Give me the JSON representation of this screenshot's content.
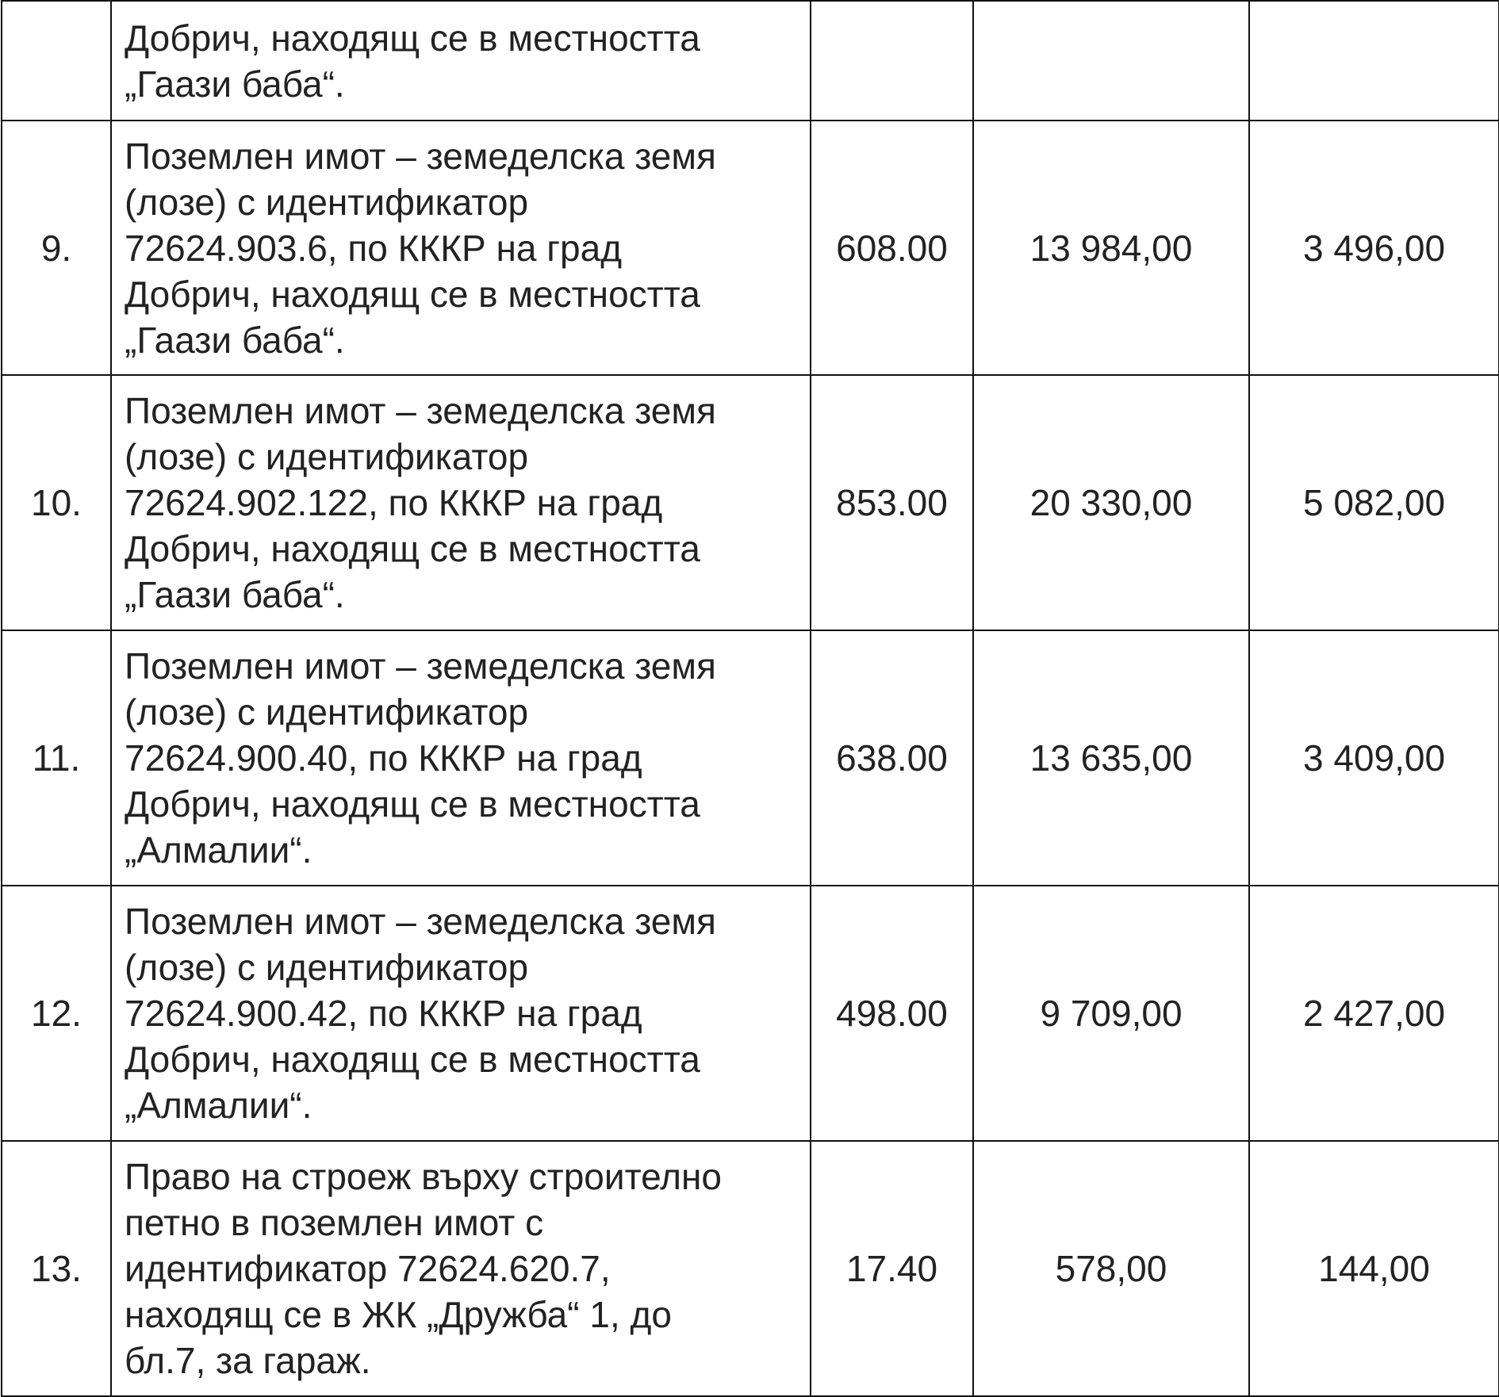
{
  "table": {
    "rows": [
      {
        "description": [
          "Добрич, находящ се в местността",
          "„Гаази баба“."
        ]
      },
      {
        "number": "9.",
        "description": [
          "Поземлен имот – земеделска земя",
          "(лозе) с идентификатор",
          "72624.903.6, по КККР на град",
          "Добрич, находящ се в местността",
          "„Гаази баба“."
        ],
        "area": "608.00",
        "value_a": "13 984,00",
        "value_b": "3 496,00"
      },
      {
        "number": "10.",
        "description": [
          "Поземлен имот – земеделска земя",
          "(лозе) с идентификатор",
          "72624.902.122, по КККР на град",
          "Добрич, находящ се в местността",
          "„Гаази баба“."
        ],
        "area": "853.00",
        "value_a": "20 330,00",
        "value_b": "5 082,00"
      },
      {
        "number": "11.",
        "description": [
          "Поземлен имот – земеделска земя",
          "(лозе) с идентификатор",
          "72624.900.40, по КККР на град",
          "Добрич, находящ се в местността",
          "„Алмалии“."
        ],
        "area": "638.00",
        "value_a": "13 635,00",
        "value_b": "3 409,00"
      },
      {
        "number": "12.",
        "description": [
          "Поземлен имот – земеделска земя",
          "(лозе) с идентификатор",
          "72624.900.42, по КККР на град",
          "Добрич, находящ се в местността",
          "„Алмалии“."
        ],
        "area": "498.00",
        "value_a": "9 709,00",
        "value_b": "2 427,00"
      },
      {
        "number": "13.",
        "description": [
          "Право на строеж върху строително",
          "петно в поземлен имот с",
          "идентификатор 72624.620.7,",
          "находящ се в ЖК „Дружба“ 1, до",
          "бл.7, за гараж."
        ],
        "area": "17.40",
        "value_a": "578,00",
        "value_b": "144,00"
      }
    ]
  }
}
